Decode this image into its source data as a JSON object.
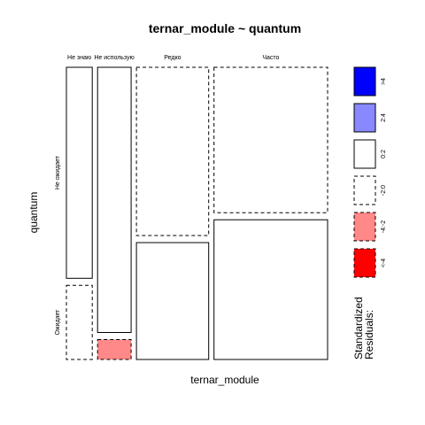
{
  "chart_data": {
    "type": "mosaic",
    "title": "ternar_module ~ quantum",
    "xlabel": "ternar_module",
    "ylabel": "quantum",
    "x_categories": [
      "Не знаю",
      "Не использую",
      "Редко",
      "Часто"
    ],
    "x_proportions": [
      0.1,
      0.13,
      0.28,
      0.44
    ],
    "y_categories": [
      "Не ожидает",
      "Ожидает"
    ],
    "cells": [
      {
        "x": "Не знаю",
        "y": "Не ожидает",
        "proportion": 0.74,
        "residual_band": "0:2"
      },
      {
        "x": "Не знаю",
        "y": "Ожидает",
        "proportion": 0.26,
        "residual_band": "-2:0"
      },
      {
        "x": "Не использую",
        "y": "Не ожидает",
        "proportion": 0.93,
        "residual_band": "0:2"
      },
      {
        "x": "Не использую",
        "y": "Ожидает",
        "proportion": 0.07,
        "residual_band": "-4:-2"
      },
      {
        "x": "Редко",
        "y": "Не ожидает",
        "proportion": 0.59,
        "residual_band": "-2:0"
      },
      {
        "x": "Редко",
        "y": "Ожидает",
        "proportion": 0.41,
        "residual_band": "0:2"
      },
      {
        "x": "Часто",
        "y": "Не ожидает",
        "proportion": 0.51,
        "residual_band": "-2:0"
      },
      {
        "x": "Часто",
        "y": "Ожидает",
        "proportion": 0.49,
        "residual_band": "0:2"
      }
    ],
    "legend": {
      "title_lines": [
        "Standardized",
        "Residuals:"
      ],
      "placement": "right",
      "entries": [
        {
          "label": ">4",
          "band": ">4",
          "color": "#0000ff",
          "dashed": false
        },
        {
          "label": "2:4",
          "band": "2:4",
          "color": "#8888ff",
          "dashed": false
        },
        {
          "label": "0:2",
          "band": "0:2",
          "color": "#ffffff",
          "dashed": false
        },
        {
          "label": "-2:0",
          "band": "-2:0",
          "color": "#ffffff",
          "dashed": true
        },
        {
          "label": "-4:-2",
          "band": "-4:-2",
          "color": "#ff8888",
          "dashed": true
        },
        {
          "label": "<-4",
          "band": "<-4",
          "color": "#ff0000",
          "dashed": true
        }
      ]
    }
  }
}
